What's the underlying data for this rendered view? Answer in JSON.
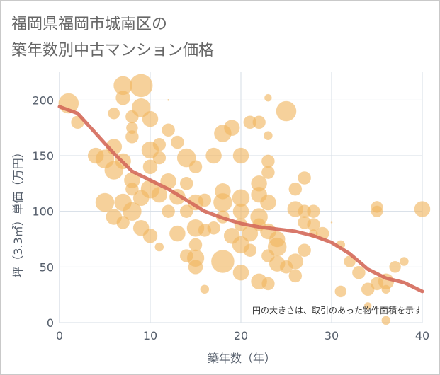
{
  "title_line1": "福岡県福岡市城南区の",
  "title_line2": "築年数別中古マンション価格",
  "chart_data": {
    "type": "scatter",
    "xlabel": "築年数（年）",
    "ylabel": "坪（3.3㎡）単価（万円）",
    "xlim": [
      0,
      40
    ],
    "ylim": [
      0,
      225
    ],
    "xticks": [
      0,
      10,
      20,
      30,
      40
    ],
    "yticks": [
      0,
      50,
      100,
      150,
      200
    ],
    "grid": true,
    "annotation": "円の大きさは、取引のあった物件面積を示す",
    "colors": {
      "bubble": "#f0b45e",
      "trend": "#d4695a",
      "grid": "#d5dde6"
    },
    "points": [
      [
        1,
        197,
        14
      ],
      [
        2,
        180,
        9
      ],
      [
        4,
        150,
        11
      ],
      [
        6,
        188,
        8
      ],
      [
        6,
        158,
        11
      ],
      [
        5,
        147,
        13
      ],
      [
        6,
        137,
        13
      ],
      [
        7,
        145,
        11
      ],
      [
        7,
        213,
        13
      ],
      [
        7,
        202,
        10
      ],
      [
        9,
        213,
        16
      ],
      [
        9,
        193,
        13
      ],
      [
        8,
        185,
        9
      ],
      [
        8,
        175,
        8
      ],
      [
        8,
        167,
        9
      ],
      [
        10,
        183,
        11
      ],
      [
        10,
        155,
        12
      ],
      [
        11,
        160,
        9
      ],
      [
        10,
        140,
        10
      ],
      [
        11,
        148,
        9
      ],
      [
        8,
        128,
        11
      ],
      [
        8,
        120,
        9
      ],
      [
        9,
        112,
        11
      ],
      [
        7,
        108,
        12
      ],
      [
        5,
        108,
        13
      ],
      [
        6,
        95,
        11
      ],
      [
        7,
        90,
        9
      ],
      [
        8,
        100,
        13
      ],
      [
        9,
        85,
        11
      ],
      [
        10,
        120,
        13
      ],
      [
        11,
        115,
        11
      ],
      [
        10,
        78,
        10
      ],
      [
        11,
        68,
        6
      ],
      [
        12,
        100,
        9
      ],
      [
        12,
        127,
        11
      ],
      [
        12,
        173,
        9
      ],
      [
        13,
        162,
        9
      ],
      [
        14,
        148,
        13
      ],
      [
        15,
        140,
        9
      ],
      [
        14,
        125,
        9
      ],
      [
        13,
        113,
        11
      ],
      [
        14,
        100,
        9
      ],
      [
        15,
        108,
        11
      ],
      [
        16,
        110,
        9
      ],
      [
        15,
        85,
        12
      ],
      [
        13,
        80,
        11
      ],
      [
        16,
        83,
        9
      ],
      [
        15,
        70,
        9
      ],
      [
        14,
        60,
        9
      ],
      [
        15,
        58,
        12
      ],
      [
        15,
        50,
        10
      ],
      [
        16,
        30,
        6
      ],
      [
        17,
        150,
        11
      ],
      [
        18,
        170,
        12
      ],
      [
        19,
        175,
        11
      ],
      [
        18,
        118,
        11
      ],
      [
        18,
        108,
        13
      ],
      [
        18,
        95,
        9
      ],
      [
        17,
        85,
        9
      ],
      [
        19,
        78,
        11
      ],
      [
        18,
        55,
        16
      ],
      [
        20,
        150,
        11
      ],
      [
        20,
        112,
        12
      ],
      [
        20,
        100,
        11
      ],
      [
        20,
        88,
        9
      ],
      [
        21,
        80,
        11
      ],
      [
        20,
        70,
        12
      ],
      [
        21,
        65,
        9
      ],
      [
        20,
        45,
        11
      ],
      [
        22,
        37,
        11
      ],
      [
        21,
        180,
        9
      ],
      [
        22,
        180,
        9
      ],
      [
        23,
        202,
        5
      ],
      [
        23,
        168,
        6
      ],
      [
        23,
        145,
        9
      ],
      [
        23,
        135,
        9
      ],
      [
        22,
        125,
        11
      ],
      [
        22,
        115,
        11
      ],
      [
        23,
        108,
        11
      ],
      [
        22,
        95,
        12
      ],
      [
        22,
        88,
        9
      ],
      [
        23,
        82,
        11
      ],
      [
        24,
        75,
        11
      ],
      [
        24,
        68,
        13
      ],
      [
        23,
        60,
        9
      ],
      [
        24,
        53,
        11
      ],
      [
        23,
        35,
        9
      ],
      [
        25,
        190,
        14
      ],
      [
        26,
        120,
        9
      ],
      [
        27,
        130,
        9
      ],
      [
        26,
        102,
        11
      ],
      [
        27,
        100,
        9
      ],
      [
        28,
        100,
        9
      ],
      [
        27,
        90,
        9
      ],
      [
        28,
        88,
        9
      ],
      [
        29,
        80,
        9
      ],
      [
        28,
        80,
        6
      ],
      [
        27,
        65,
        9
      ],
      [
        25,
        50,
        9
      ],
      [
        26,
        55,
        11
      ],
      [
        26,
        42,
        9
      ],
      [
        31,
        70,
        6
      ],
      [
        32,
        55,
        8
      ],
      [
        33,
        45,
        9
      ],
      [
        31,
        28,
        8
      ],
      [
        34,
        30,
        9
      ],
      [
        35,
        35,
        9
      ],
      [
        36,
        37,
        11
      ],
      [
        36,
        30,
        6
      ],
      [
        34,
        15,
        5
      ],
      [
        35,
        104,
        8
      ],
      [
        35,
        100,
        8
      ],
      [
        37,
        50,
        8
      ],
      [
        38,
        55,
        6
      ],
      [
        36,
        2,
        6
      ],
      [
        40,
        102,
        11
      ],
      [
        12,
        200,
        1
      ],
      [
        30,
        90,
        1
      ]
    ],
    "trend": [
      [
        0,
        194
      ],
      [
        2,
        188
      ],
      [
        4,
        170
      ],
      [
        6,
        152
      ],
      [
        8,
        136
      ],
      [
        10,
        128
      ],
      [
        12,
        120
      ],
      [
        14,
        110
      ],
      [
        16,
        100
      ],
      [
        18,
        94
      ],
      [
        20,
        89
      ],
      [
        22,
        86
      ],
      [
        24,
        84
      ],
      [
        26,
        82
      ],
      [
        28,
        78
      ],
      [
        30,
        72
      ],
      [
        32,
        62
      ],
      [
        34,
        48
      ],
      [
        36,
        40
      ],
      [
        38,
        36
      ],
      [
        40,
        28
      ]
    ]
  }
}
